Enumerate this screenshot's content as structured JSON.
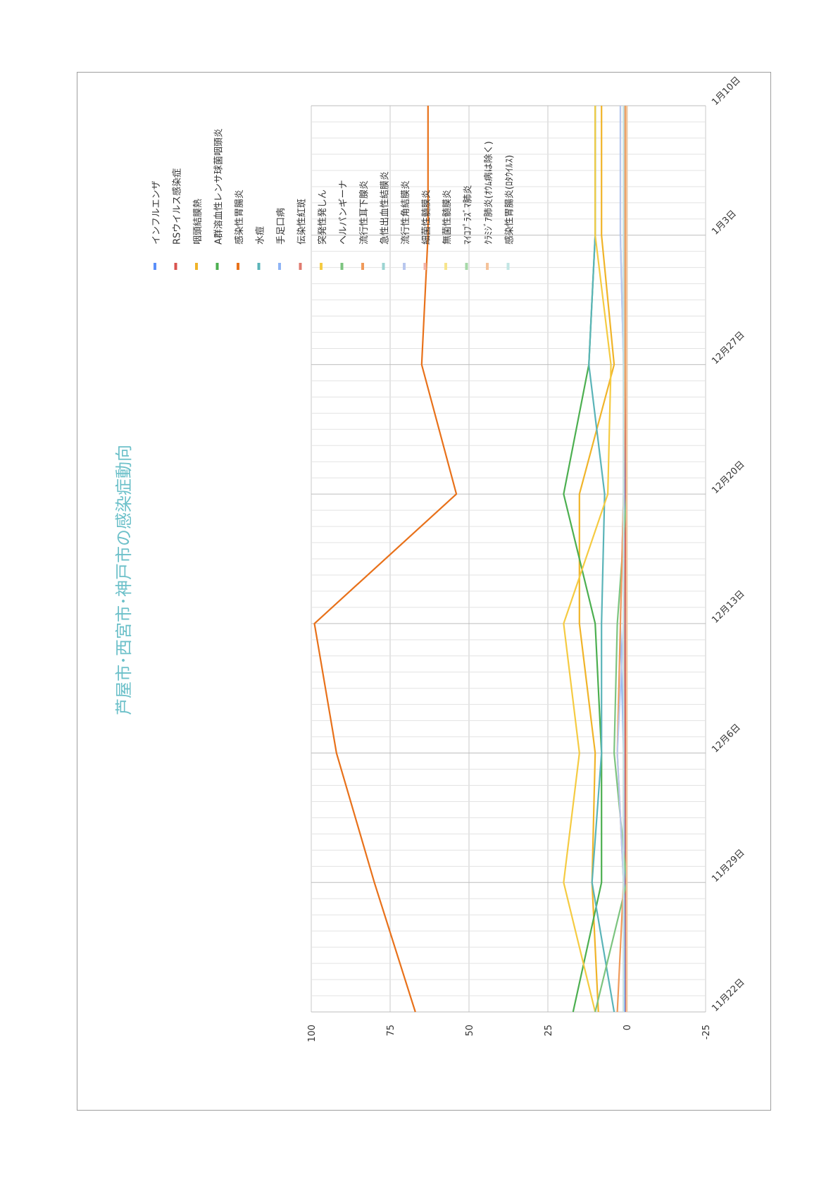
{
  "chart_data": {
    "type": "line",
    "title": "芦屋市･西宮市･神戸市の感染症動向",
    "title_color": "#6cc0c9",
    "x": [
      "11月22日",
      "11月29日",
      "12月6日",
      "12月13日",
      "12月20日",
      "12月27日",
      "1月3日",
      "1月10日"
    ],
    "ylim": [
      -25,
      100
    ],
    "yticks": [
      100,
      75,
      50,
      25,
      0,
      -25
    ],
    "grid": true,
    "legend_position": "right",
    "series": [
      {
        "name": "インフルエンザ",
        "color": "#5b8ff9",
        "values": [
          0.5,
          0.5,
          0.5,
          0.5,
          0.5,
          0.5,
          0.5,
          0.5
        ]
      },
      {
        "name": "RSウイルス感染症",
        "color": "#d9534f",
        "values": [
          0.2,
          0.3,
          0.4,
          0.6,
          0.3,
          0.3,
          0.2,
          0.2
        ]
      },
      {
        "name": "咽頭結膜熱",
        "color": "#f0b429",
        "values": [
          9,
          11,
          10,
          15,
          15,
          4,
          8,
          8
        ]
      },
      {
        "name": "A群溶血性レンサ球菌咽頭炎",
        "color": "#4caf50",
        "values": [
          17,
          8,
          8,
          10,
          20,
          12,
          10,
          10
        ]
      },
      {
        "name": "感染性胃腸炎",
        "color": "#e8711a",
        "values": [
          67,
          80,
          92,
          99,
          54,
          65,
          63,
          63
        ]
      },
      {
        "name": "水痘",
        "color": "#5ab4b8",
        "values": [
          4,
          11,
          8,
          8,
          7,
          12,
          10,
          10
        ]
      },
      {
        "name": "手足口病",
        "color": "#8fb4f5",
        "values": [
          1,
          1,
          1,
          2,
          1,
          1,
          2,
          2
        ]
      },
      {
        "name": "伝染性紅斑",
        "color": "#e07b6f",
        "values": [
          1,
          1,
          1,
          1,
          1,
          1,
          1,
          1
        ]
      },
      {
        "name": "突発性発しん",
        "color": "#f5cb42",
        "values": [
          10,
          20,
          15,
          20,
          6,
          5,
          10,
          10
        ]
      },
      {
        "name": "ヘルパンギーナ",
        "color": "#7cc47f",
        "values": [
          10,
          0,
          4,
          3,
          0,
          0,
          0,
          0
        ]
      },
      {
        "name": "流行性耳下腺炎",
        "color": "#f09a5a",
        "values": [
          3,
          1,
          3,
          2,
          1,
          0.5,
          0.5,
          0.5
        ]
      },
      {
        "name": "急性出血性結膜炎",
        "color": "#9bd4d2",
        "values": [
          0,
          0,
          0,
          0,
          0,
          0,
          0,
          0
        ]
      },
      {
        "name": "流行性角結膜炎",
        "color": "#b8c7ee",
        "values": [
          1,
          1,
          3,
          1,
          1,
          1,
          2,
          2
        ]
      },
      {
        "name": "細菌性髄膜炎",
        "color": "#f2b3a8",
        "values": [
          0,
          0,
          0,
          0,
          0,
          0,
          0,
          0
        ]
      },
      {
        "name": "無菌性髄膜炎",
        "color": "#f7e58c",
        "values": [
          0,
          0,
          0,
          0,
          0,
          0,
          0,
          0
        ]
      },
      {
        "name": "ﾏｲｺﾌﾟﾗｽﾞﾏ肺炎",
        "color": "#a6d9a8",
        "values": [
          0,
          0,
          0,
          0,
          0,
          0,
          0,
          0
        ]
      },
      {
        "name": "ｸﾗﾐｼﾞｱ肺炎(ｵｳﾑ病は除く)",
        "color": "#f5c29a",
        "values": [
          0,
          0,
          0,
          0,
          0,
          0,
          0,
          0
        ]
      },
      {
        "name": "感染性胃腸炎(ﾛﾀｳｲﾙｽ)",
        "color": "#c2e6e4",
        "values": [
          1,
          1,
          1,
          1,
          1,
          1,
          1,
          1
        ]
      }
    ]
  }
}
